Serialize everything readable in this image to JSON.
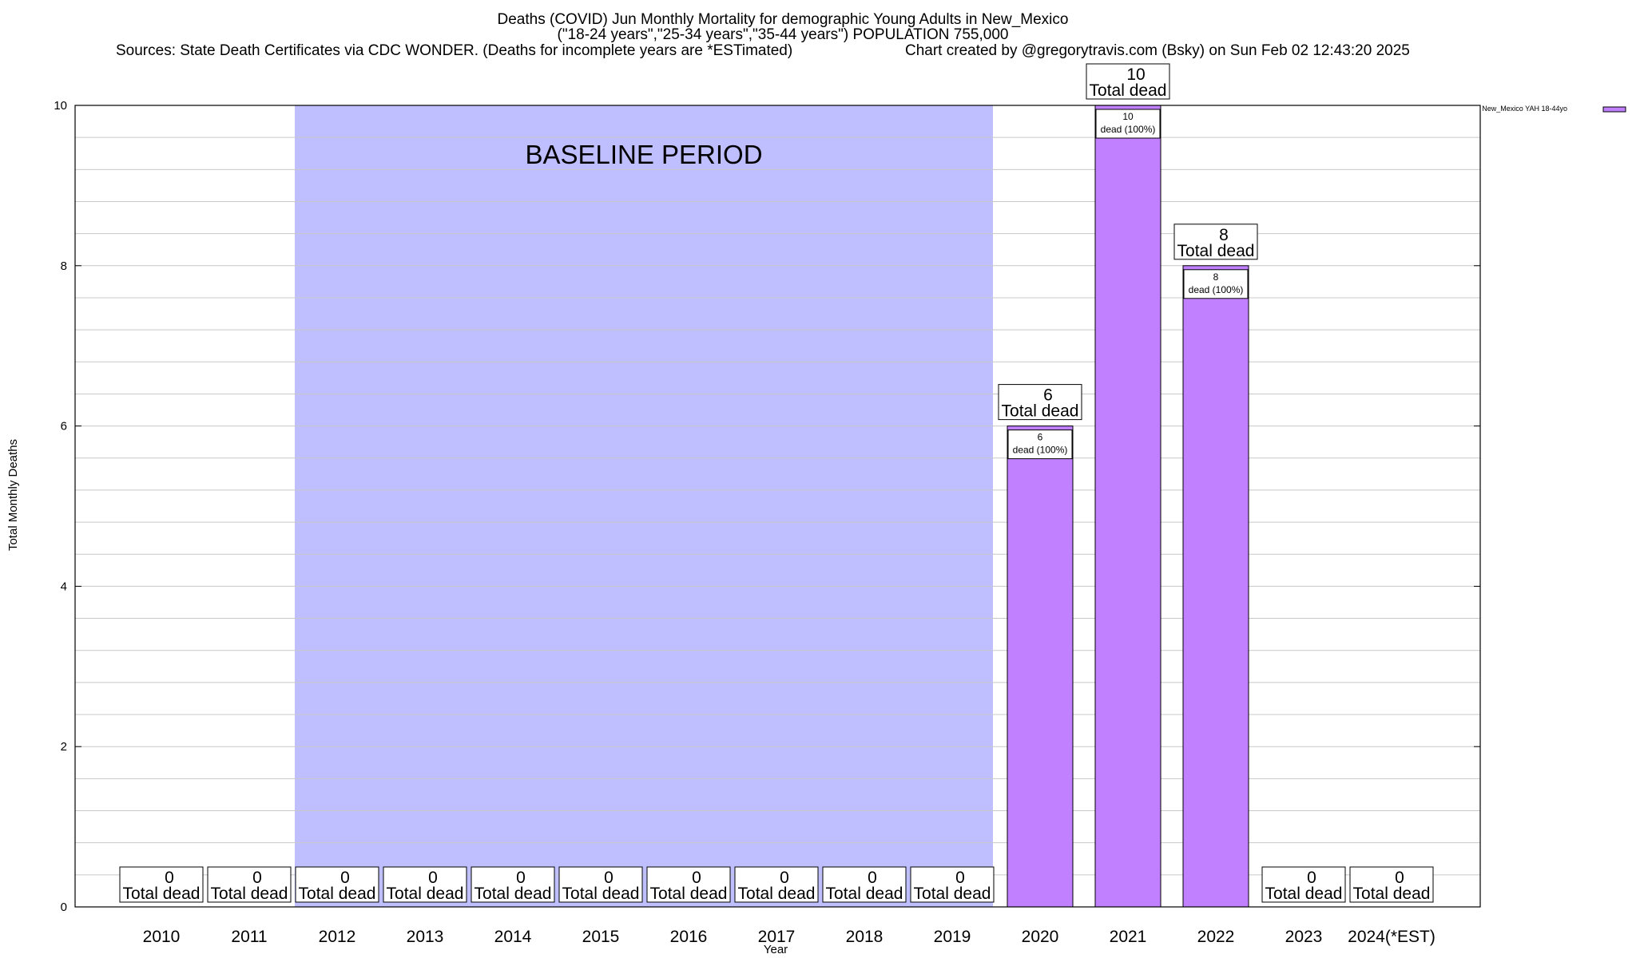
{
  "chart_data": {
    "type": "bar",
    "title": "Deaths (COVID) Jun Monthly Mortality for demographic Young Adults in New_Mexico",
    "subtitle": "(\"18-24 years\",\"25-34 years\",\"35-44 years\") POPULATION 755,000",
    "sources": "Sources: State Death Certificates via CDC WONDER. (Deaths for incomplete years are *ESTimated)",
    "credit": "Chart created by @gregorytravis.com (Bsky) on Sun Feb 02 12:43:20 2025",
    "xlabel": "Year",
    "ylabel": "Total Monthly Deaths",
    "ylim": [
      0,
      10
    ],
    "yticks": [
      "0",
      "2",
      "4",
      "6",
      "8",
      "10"
    ],
    "categories": [
      "2010",
      "2011",
      "2012",
      "2013",
      "2014",
      "2015",
      "2016",
      "2017",
      "2018",
      "2019",
      "2020",
      "2021",
      "2022",
      "2023",
      "2024(*EST)"
    ],
    "series": [
      {
        "name": "New_Mexico YAH 18-44yo",
        "color": "#c080ff",
        "values": [
          0,
          0,
          0,
          0,
          0,
          0,
          0,
          0,
          0,
          0,
          6,
          10,
          8,
          0,
          0
        ]
      }
    ],
    "total_label_suffix": "Total dead",
    "inner_label_suffix": "dead (100%)",
    "baseline_period": {
      "label": "BASELINE PERIOD",
      "start": "2012",
      "end": "2019",
      "color": "#bfbfff"
    },
    "grid": true,
    "legend_position": "top-right"
  }
}
